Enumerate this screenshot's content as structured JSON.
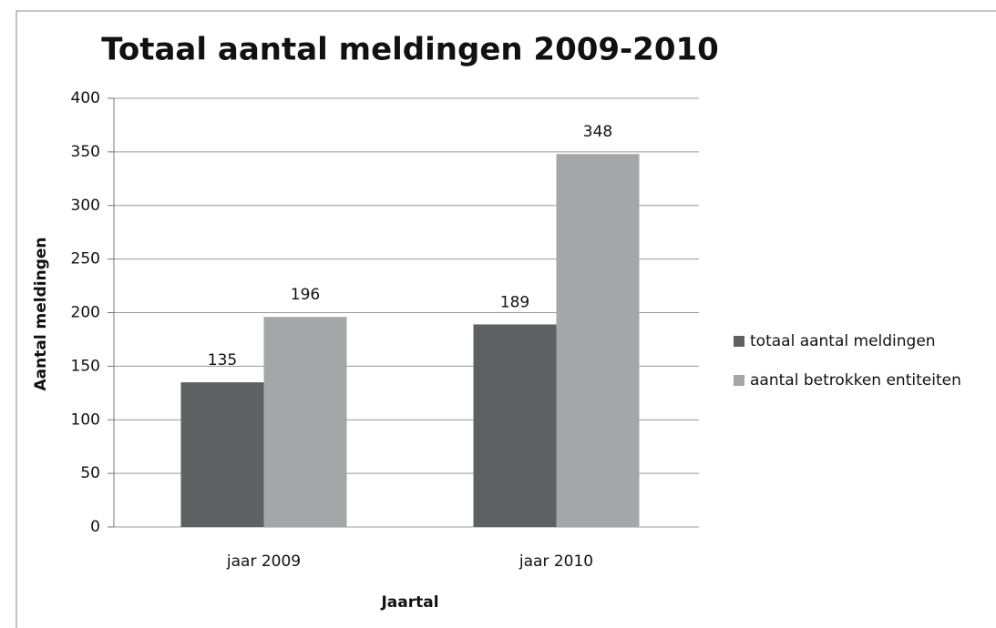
{
  "chart_data": {
    "type": "bar",
    "title": "Totaal aantal meldingen 2009-2010",
    "x_label": "Jaartal",
    "y_label": "Aantal meldingen",
    "categories": [
      "jaar 2009",
      "jaar 2010"
    ],
    "series": [
      {
        "name": "totaal aantal meldingen",
        "color": "#5f6062",
        "values": [
          135,
          189
        ]
      },
      {
        "name": "aantal betrokken entiteiten",
        "color": "#a5a6a8",
        "values": [
          196,
          348
        ]
      }
    ],
    "ylim": [
      0,
      400
    ],
    "yticks": [
      0,
      50,
      100,
      150,
      200,
      250,
      300,
      350,
      400
    ],
    "grid": true,
    "legend": "right"
  }
}
